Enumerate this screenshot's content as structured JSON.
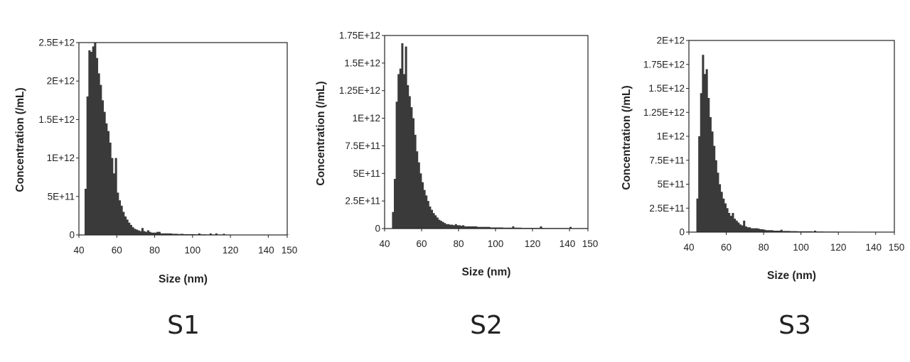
{
  "colors": {
    "bars": "#3a3a3a",
    "axis": "#222222",
    "background": "#ffffff"
  },
  "chart_data": [
    {
      "type": "bar",
      "panel_label": "S1",
      "xlabel": "Size (nm)",
      "ylabel": "Concentration (/mL)",
      "xlim": [
        40,
        150
      ],
      "ylim": [
        0,
        2500000000000.0
      ],
      "xticks": [
        40,
        60,
        80,
        100,
        120,
        140,
        150
      ],
      "xtick_labels": [
        "40",
        "60",
        "80",
        "100",
        "120",
        "140",
        "150"
      ],
      "yticks": [
        0,
        500000000000.0,
        1000000000000.0,
        1500000000000.0,
        2000000000000.0,
        2500000000000.0
      ],
      "ytick_labels": [
        "0",
        "5E+11",
        "1E+12",
        "1.5E+12",
        "2E+12",
        "2.5E+12"
      ],
      "grid": false,
      "bin_width": 1,
      "x": [
        43,
        44,
        45,
        46,
        47,
        48,
        49,
        50,
        51,
        52,
        53,
        54,
        55,
        56,
        57,
        58,
        59,
        60,
        61,
        62,
        63,
        64,
        65,
        66,
        67,
        68,
        69,
        70,
        71,
        72,
        73,
        74,
        75,
        76,
        77,
        78,
        79,
        80,
        81,
        82,
        83,
        84,
        85,
        86,
        87,
        88,
        89,
        90,
        91,
        92,
        93,
        94,
        95,
        96,
        97,
        98,
        99,
        100,
        101,
        102,
        103,
        104,
        105,
        106,
        107,
        108,
        109,
        110,
        111,
        112,
        113,
        114,
        115,
        116,
        117,
        118,
        119,
        120,
        121,
        122,
        123,
        124,
        125,
        126,
        127,
        128,
        129,
        130,
        131,
        132,
        133,
        134,
        135,
        136,
        137,
        138,
        139,
        140,
        141,
        142,
        143,
        144,
        145,
        146,
        147,
        148,
        149,
        150
      ],
      "values": [
        600000000000.0,
        1800000000000.0,
        2400000000000.0,
        2380000000000.0,
        2450000000000.0,
        2500000000000.0,
        2300000000000.0,
        2100000000000.0,
        1950000000000.0,
        1750000000000.0,
        1600000000000.0,
        1450000000000.0,
        1350000000000.0,
        1200000000000.0,
        1000000000000.0,
        800000000000.0,
        1000000000000.0,
        550000000000.0,
        450000000000.0,
        380000000000.0,
        300000000000.0,
        240000000000.0,
        200000000000.0,
        160000000000.0,
        130000000000.0,
        100000000000.0,
        80000000000.0,
        70000000000.0,
        60000000000.0,
        50000000000.0,
        90000000000.0,
        50000000000.0,
        40000000000.0,
        60000000000.0,
        40000000000.0,
        30000000000.0,
        30000000000.0,
        30000000000.0,
        40000000000.0,
        40000000000.0,
        20000000000.0,
        20000000000.0,
        20000000000.0,
        20000000000.0,
        20000000000.0,
        20000000000.0,
        15000000000.0,
        15000000000.0,
        15000000000.0,
        12000000000.0,
        12000000000.0,
        15000000000.0,
        10000000000.0,
        10000000000.0,
        10000000000.0,
        10000000000.0,
        10000000000.0,
        10000000000.0,
        8000000000.0,
        8000000000.0,
        20000000000.0,
        8000000000.0,
        8000000000.0,
        8000000000.0,
        6000000000.0,
        6000000000.0,
        20000000000.0,
        6000000000.0,
        6000000000.0,
        20000000000.0,
        6000000000.0,
        6000000000.0,
        5000000000.0,
        15000000000.0,
        5000000000.0,
        5000000000.0,
        5000000000.0,
        4000000000.0,
        4000000000.0,
        4000000000.0,
        4000000000.0,
        4000000000.0,
        4000000000.0,
        4000000000.0,
        3000000000.0,
        3000000000.0,
        3000000000.0,
        3000000000.0,
        3000000000.0,
        3000000000.0,
        3000000000.0,
        3000000000.0,
        3000000000.0,
        3000000000.0,
        3000000000.0,
        3000000000.0,
        3000000000.0,
        3000000000.0,
        3000000000.0,
        3000000000.0,
        3000000000.0,
        3000000000.0,
        3000000000.0,
        3000000000.0,
        3000000000.0,
        3000000000.0,
        3000000000.0,
        3000000000.0
      ]
    },
    {
      "type": "bar",
      "panel_label": "S2",
      "xlabel": "Size (nm)",
      "ylabel": "Concentration (/mL)",
      "xlim": [
        40,
        150
      ],
      "ylim": [
        0,
        1750000000000.0
      ],
      "xticks": [
        40,
        60,
        80,
        100,
        120,
        140,
        150
      ],
      "xtick_labels": [
        "40",
        "60",
        "80",
        "100",
        "120",
        "140",
        "150"
      ],
      "yticks": [
        0,
        250000000000.0,
        500000000000.0,
        750000000000.0,
        1000000000000.0,
        1250000000000.0,
        1500000000000.0,
        1750000000000.0
      ],
      "ytick_labels": [
        "0",
        "2.5E+11",
        "5E+11",
        "7.5E+11",
        "1E+12",
        "1.25E+12",
        "1.5E+12",
        "1.75E+12"
      ],
      "grid": false,
      "bin_width": 1,
      "x": [
        44,
        45,
        46,
        47,
        48,
        49,
        50,
        51,
        52,
        53,
        54,
        55,
        56,
        57,
        58,
        59,
        60,
        61,
        62,
        63,
        64,
        65,
        66,
        67,
        68,
        69,
        70,
        71,
        72,
        73,
        74,
        75,
        76,
        77,
        78,
        79,
        80,
        81,
        82,
        83,
        84,
        85,
        86,
        87,
        88,
        89,
        90,
        91,
        92,
        93,
        94,
        95,
        96,
        97,
        98,
        99,
        100,
        101,
        102,
        103,
        104,
        105,
        106,
        107,
        108,
        109,
        110,
        111,
        112,
        113,
        114,
        115,
        116,
        117,
        118,
        119,
        120,
        121,
        122,
        123,
        124,
        125,
        126,
        127,
        128,
        129,
        130,
        131,
        132,
        133,
        134,
        135,
        136,
        137,
        138,
        139,
        140,
        141,
        142,
        143,
        144,
        145,
        146,
        147,
        148,
        149
      ],
      "values": [
        150000000000.0,
        450000000000.0,
        1150000000000.0,
        1400000000000.0,
        1450000000000.0,
        1680000000000.0,
        1400000000000.0,
        1650000000000.0,
        1300000000000.0,
        1200000000000.0,
        1100000000000.0,
        1000000000000.0,
        850000000000.0,
        700000000000.0,
        600000000000.0,
        500000000000.0,
        420000000000.0,
        350000000000.0,
        300000000000.0,
        250000000000.0,
        200000000000.0,
        170000000000.0,
        140000000000.0,
        120000000000.0,
        100000000000.0,
        80000000000.0,
        70000000000.0,
        60000000000.0,
        50000000000.0,
        40000000000.0,
        40000000000.0,
        35000000000.0,
        35000000000.0,
        30000000000.0,
        40000000000.0,
        30000000000.0,
        30000000000.0,
        25000000000.0,
        30000000000.0,
        20000000000.0,
        20000000000.0,
        20000000000.0,
        20000000000.0,
        20000000000.0,
        20000000000.0,
        20000000000.0,
        15000000000.0,
        15000000000.0,
        15000000000.0,
        15000000000.0,
        15000000000.0,
        15000000000.0,
        15000000000.0,
        10000000000.0,
        10000000000.0,
        10000000000.0,
        10000000000.0,
        10000000000.0,
        10000000000.0,
        10000000000.0,
        8000000000.0,
        8000000000.0,
        8000000000.0,
        8000000000.0,
        8000000000.0,
        20000000000.0,
        8000000000.0,
        8000000000.0,
        8000000000.0,
        8000000000.0,
        6000000000.0,
        6000000000.0,
        6000000000.0,
        6000000000.0,
        6000000000.0,
        6000000000.0,
        6000000000.0,
        6000000000.0,
        6000000000.0,
        6000000000.0,
        20000000000.0,
        6000000000.0,
        5000000000.0,
        5000000000.0,
        5000000000.0,
        5000000000.0,
        5000000000.0,
        5000000000.0,
        5000000000.0,
        5000000000.0,
        5000000000.0,
        5000000000.0,
        5000000000.0,
        5000000000.0,
        5000000000.0,
        4000000000.0,
        15000000000.0,
        4000000000.0,
        4000000000.0,
        4000000000.0,
        4000000000.0,
        4000000000.0,
        4000000000.0,
        4000000000.0,
        4000000000.0,
        4000000000.0
      ]
    },
    {
      "type": "bar",
      "panel_label": "S3",
      "xlabel": "Size (nm)",
      "ylabel": "Concentration (/mL)",
      "xlim": [
        40,
        150
      ],
      "ylim": [
        0,
        2000000000000.0
      ],
      "xticks": [
        40,
        60,
        80,
        100,
        120,
        140,
        150
      ],
      "xtick_labels": [
        "40",
        "60",
        "80",
        "100",
        "120",
        "140",
        "150"
      ],
      "yticks": [
        0,
        250000000000.0,
        500000000000.0,
        750000000000.0,
        1000000000000.0,
        1250000000000.0,
        1500000000000.0,
        1750000000000.0,
        2000000000000.0
      ],
      "ytick_labels": [
        "0",
        "2.5E+11",
        "5E+11",
        "7.5E+11",
        "1E+12",
        "1.25E+12",
        "1.5E+12",
        "1.75E+12",
        "2E+12"
      ],
      "grid": false,
      "bin_width": 1,
      "x": [
        44,
        45,
        46,
        47,
        48,
        49,
        50,
        51,
        52,
        53,
        54,
        55,
        56,
        57,
        58,
        59,
        60,
        61,
        62,
        63,
        64,
        65,
        66,
        67,
        68,
        69,
        70,
        71,
        72,
        73,
        74,
        75,
        76,
        77,
        78,
        79,
        80,
        81,
        82,
        83,
        84,
        85,
        86,
        87,
        88,
        89,
        90,
        91,
        92,
        93,
        94,
        95,
        96,
        97,
        98,
        99,
        100,
        101,
        102,
        103,
        104,
        105,
        106,
        107,
        108,
        109,
        110,
        111,
        112,
        113,
        114,
        115,
        116,
        117,
        118,
        119,
        120,
        121,
        122,
        123,
        124,
        125,
        126,
        127,
        128,
        129,
        130,
        131,
        132,
        133,
        134,
        135,
        136,
        137,
        138,
        139,
        140,
        141,
        142,
        143,
        144,
        145,
        146,
        147,
        148,
        149
      ],
      "values": [
        350000000000.0,
        1000000000000.0,
        1450000000000.0,
        1850000000000.0,
        1650000000000.0,
        1700000000000.0,
        1400000000000.0,
        1200000000000.0,
        1050000000000.0,
        900000000000.0,
        750000000000.0,
        620000000000.0,
        500000000000.0,
        420000000000.0,
        350000000000.0,
        300000000000.0,
        250000000000.0,
        200000000000.0,
        170000000000.0,
        200000000000.0,
        140000000000.0,
        120000000000.0,
        100000000000.0,
        80000000000.0,
        70000000000.0,
        120000000000.0,
        60000000000.0,
        50000000000.0,
        50000000000.0,
        40000000000.0,
        40000000000.0,
        40000000000.0,
        40000000000.0,
        35000000000.0,
        30000000000.0,
        30000000000.0,
        25000000000.0,
        20000000000.0,
        20000000000.0,
        20000000000.0,
        20000000000.0,
        15000000000.0,
        15000000000.0,
        15000000000.0,
        15000000000.0,
        25000000000.0,
        12000000000.0,
        12000000000.0,
        12000000000.0,
        12000000000.0,
        10000000000.0,
        10000000000.0,
        10000000000.0,
        10000000000.0,
        8000000000.0,
        8000000000.0,
        8000000000.0,
        8000000000.0,
        8000000000.0,
        8000000000.0,
        8000000000.0,
        8000000000.0,
        6000000000.0,
        15000000000.0,
        6000000000.0,
        6000000000.0,
        6000000000.0,
        6000000000.0,
        5000000000.0,
        5000000000.0,
        5000000000.0,
        5000000000.0,
        5000000000.0,
        5000000000.0,
        5000000000.0,
        5000000000.0,
        4000000000.0,
        4000000000.0,
        4000000000.0,
        4000000000.0,
        4000000000.0,
        4000000000.0,
        4000000000.0,
        4000000000.0,
        4000000000.0,
        4000000000.0,
        3000000000.0,
        3000000000.0,
        3000000000.0,
        3000000000.0,
        3000000000.0,
        3000000000.0,
        3000000000.0,
        3000000000.0,
        3000000000.0,
        3000000000.0,
        3000000000.0,
        3000000000.0,
        3000000000.0,
        3000000000.0,
        3000000000.0,
        3000000000.0,
        3000000000.0,
        3000000000.0,
        3000000000.0,
        3000000000.0
      ]
    }
  ]
}
